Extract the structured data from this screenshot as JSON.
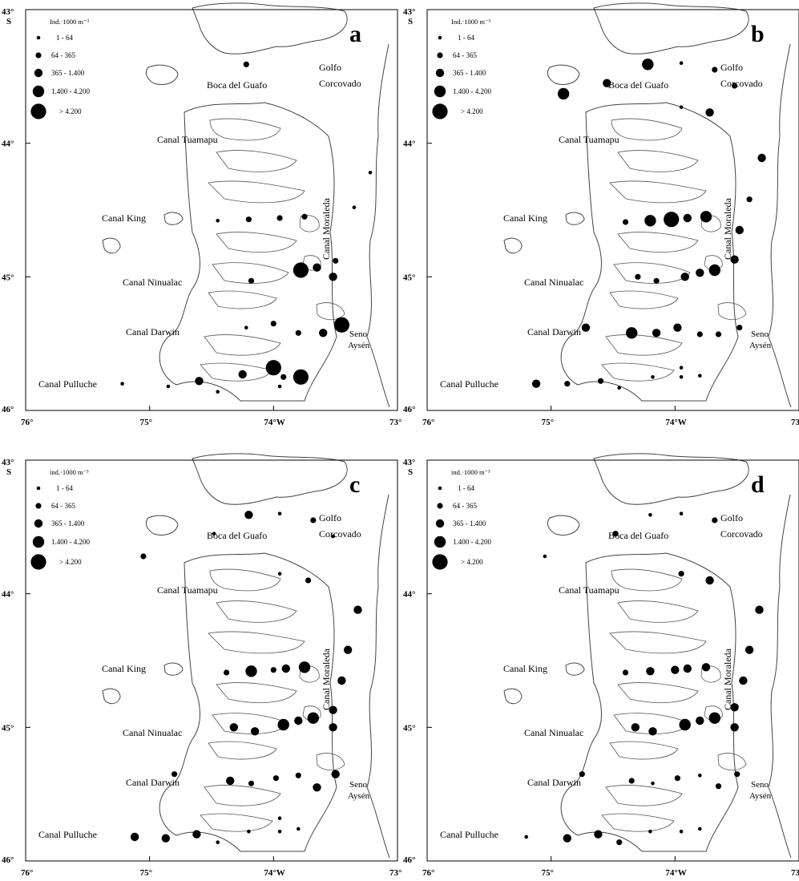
{
  "figure": {
    "axis": {
      "lat_top": "43°",
      "lat_top_suffix": "S",
      "lat_mid": "44°",
      "lat_45": "45°",
      "lat_bottom": "46°",
      "lon_76": "76°",
      "lon_75": "75°",
      "lon_74": "74°W",
      "lon_73": "73°"
    },
    "legend": {
      "title": "Ind.·1000 m⁻³",
      "classes": [
        "1 - 64",
        "64 - 365",
        "365 - 1.400",
        "1.400 - 4.200",
        "> 4.200"
      ]
    },
    "place_labels": {
      "boca_del_guafo": "Boca del Guafo",
      "golfo": "Golfo",
      "corcovado": "Corcovado",
      "canal_tuamapu": "Canal Tuamapu",
      "canal_king": "Canal King",
      "canal_moraleda": "Canal Moraleda",
      "canal_ninualac": "Canal Ninualac",
      "canal_darwin": "Canal Darwin",
      "canal_pulluche": "Canal Pulluche",
      "seno": "Seno",
      "aysen": "Aysén"
    },
    "panels": [
      {
        "label": "a",
        "legend_title": "Ind.·1000 m⁻³",
        "stations": [
          {
            "lon": -74.22,
            "lat": -43.41,
            "cls": 2
          },
          {
            "lon": -73.35,
            "lat": -44.48,
            "cls": 1
          },
          {
            "lon": -73.22,
            "lat": -44.22,
            "cls": 1
          },
          {
            "lon": -74.45,
            "lat": -44.58,
            "cls": 1
          },
          {
            "lon": -74.2,
            "lat": -44.57,
            "cls": 2
          },
          {
            "lon": -73.95,
            "lat": -44.56,
            "cls": 2
          },
          {
            "lon": -73.75,
            "lat": -44.55,
            "cls": 2
          },
          {
            "lon": -73.78,
            "lat": -44.95,
            "cls": 5
          },
          {
            "lon": -73.65,
            "lat": -44.93,
            "cls": 3
          },
          {
            "lon": -73.5,
            "lat": -44.88,
            "cls": 2
          },
          {
            "lon": -73.52,
            "lat": -45.0,
            "cls": 3
          },
          {
            "lon": -74.18,
            "lat": -45.03,
            "cls": 2
          },
          {
            "lon": -74.22,
            "lat": -45.38,
            "cls": 1
          },
          {
            "lon": -74.0,
            "lat": -45.35,
            "cls": 2
          },
          {
            "lon": -73.8,
            "lat": -45.42,
            "cls": 2
          },
          {
            "lon": -73.6,
            "lat": -45.42,
            "cls": 3
          },
          {
            "lon": -73.45,
            "lat": -45.36,
            "cls": 5
          },
          {
            "lon": -74.0,
            "lat": -45.68,
            "cls": 5
          },
          {
            "lon": -73.78,
            "lat": -45.75,
            "cls": 5
          },
          {
            "lon": -73.92,
            "lat": -45.75,
            "cls": 2
          },
          {
            "lon": -74.25,
            "lat": -45.73,
            "cls": 3
          },
          {
            "lon": -74.6,
            "lat": -45.78,
            "cls": 3
          },
          {
            "lon": -74.85,
            "lat": -45.82,
            "cls": 1
          },
          {
            "lon": -75.22,
            "lat": -45.8,
            "cls": 1
          },
          {
            "lon": -74.45,
            "lat": -45.86,
            "cls": 1
          },
          {
            "lon": -73.95,
            "lat": -45.82,
            "cls": 1
          }
        ]
      },
      {
        "label": "b",
        "legend_title": "Ind.·1000 m⁻³",
        "stations": [
          {
            "lon": -74.22,
            "lat": -43.41,
            "cls": 4
          },
          {
            "lon": -73.95,
            "lat": -43.4,
            "cls": 1
          },
          {
            "lon": -73.68,
            "lat": -43.45,
            "cls": 2
          },
          {
            "lon": -73.52,
            "lat": -43.57,
            "cls": 2
          },
          {
            "lon": -74.55,
            "lat": -43.55,
            "cls": 3
          },
          {
            "lon": -74.9,
            "lat": -43.63,
            "cls": 4
          },
          {
            "lon": -73.95,
            "lat": -43.73,
            "cls": 1
          },
          {
            "lon": -73.72,
            "lat": -43.77,
            "cls": 3
          },
          {
            "lon": -73.3,
            "lat": -44.11,
            "cls": 3
          },
          {
            "lon": -73.4,
            "lat": -44.42,
            "cls": 2
          },
          {
            "lon": -74.4,
            "lat": -44.59,
            "cls": 2
          },
          {
            "lon": -74.2,
            "lat": -44.58,
            "cls": 4
          },
          {
            "lon": -74.03,
            "lat": -44.57,
            "cls": 5
          },
          {
            "lon": -73.9,
            "lat": -44.56,
            "cls": 3
          },
          {
            "lon": -73.75,
            "lat": -44.55,
            "cls": 4
          },
          {
            "lon": -73.48,
            "lat": -44.65,
            "cls": 3
          },
          {
            "lon": -73.52,
            "lat": -44.87,
            "cls": 3
          },
          {
            "lon": -74.3,
            "lat": -45.0,
            "cls": 2
          },
          {
            "lon": -74.15,
            "lat": -45.03,
            "cls": 2
          },
          {
            "lon": -73.92,
            "lat": -45.0,
            "cls": 3
          },
          {
            "lon": -73.8,
            "lat": -44.97,
            "cls": 3
          },
          {
            "lon": -73.68,
            "lat": -44.95,
            "cls": 4
          },
          {
            "lon": -74.72,
            "lat": -45.38,
            "cls": 3
          },
          {
            "lon": -74.35,
            "lat": -45.42,
            "cls": 4
          },
          {
            "lon": -74.15,
            "lat": -45.42,
            "cls": 3
          },
          {
            "lon": -73.98,
            "lat": -45.38,
            "cls": 3
          },
          {
            "lon": -73.8,
            "lat": -45.43,
            "cls": 2
          },
          {
            "lon": -73.65,
            "lat": -45.43,
            "cls": 2
          },
          {
            "lon": -73.48,
            "lat": -45.38,
            "cls": 2
          },
          {
            "lon": -75.12,
            "lat": -45.8,
            "cls": 3
          },
          {
            "lon": -74.87,
            "lat": -45.8,
            "cls": 2
          },
          {
            "lon": -74.6,
            "lat": -45.78,
            "cls": 2
          },
          {
            "lon": -74.45,
            "lat": -45.83,
            "cls": 1
          },
          {
            "lon": -74.18,
            "lat": -45.75,
            "cls": 1
          },
          {
            "lon": -73.95,
            "lat": -45.75,
            "cls": 1
          },
          {
            "lon": -73.8,
            "lat": -45.74,
            "cls": 1
          },
          {
            "lon": -73.95,
            "lat": -45.68,
            "cls": 1
          }
        ]
      },
      {
        "label": "c",
        "legend_title": "ind.·1000 m⁻³",
        "stations": [
          {
            "lon": -74.2,
            "lat": -43.41,
            "cls": 3
          },
          {
            "lon": -73.95,
            "lat": -43.4,
            "cls": 1
          },
          {
            "lon": -73.68,
            "lat": -43.45,
            "cls": 2
          },
          {
            "lon": -73.52,
            "lat": -43.57,
            "cls": 1
          },
          {
            "lon": -74.48,
            "lat": -43.55,
            "cls": 1
          },
          {
            "lon": -75.05,
            "lat": -43.72,
            "cls": 2
          },
          {
            "lon": -73.95,
            "lat": -43.85,
            "cls": 1
          },
          {
            "lon": -73.72,
            "lat": -43.9,
            "cls": 2
          },
          {
            "lon": -73.32,
            "lat": -44.12,
            "cls": 3
          },
          {
            "lon": -73.4,
            "lat": -44.42,
            "cls": 3
          },
          {
            "lon": -74.38,
            "lat": -44.59,
            "cls": 2
          },
          {
            "lon": -74.18,
            "lat": -44.58,
            "cls": 4
          },
          {
            "lon": -74.0,
            "lat": -44.57,
            "cls": 2
          },
          {
            "lon": -73.9,
            "lat": -44.56,
            "cls": 3
          },
          {
            "lon": -73.75,
            "lat": -44.55,
            "cls": 4
          },
          {
            "lon": -73.45,
            "lat": -44.65,
            "cls": 3
          },
          {
            "lon": -73.52,
            "lat": -44.87,
            "cls": 3
          },
          {
            "lon": -74.32,
            "lat": -45.0,
            "cls": 3
          },
          {
            "lon": -74.15,
            "lat": -45.03,
            "cls": 3
          },
          {
            "lon": -73.92,
            "lat": -44.98,
            "cls": 4
          },
          {
            "lon": -73.8,
            "lat": -44.95,
            "cls": 3
          },
          {
            "lon": -73.68,
            "lat": -44.93,
            "cls": 4
          },
          {
            "lon": -73.52,
            "lat": -45.0,
            "cls": 3
          },
          {
            "lon": -74.8,
            "lat": -45.35,
            "cls": 2
          },
          {
            "lon": -74.35,
            "lat": -45.4,
            "cls": 3
          },
          {
            "lon": -74.18,
            "lat": -45.42,
            "cls": 2
          },
          {
            "lon": -73.98,
            "lat": -45.38,
            "cls": 2
          },
          {
            "lon": -73.8,
            "lat": -45.36,
            "cls": 2
          },
          {
            "lon": -73.65,
            "lat": -45.45,
            "cls": 3
          },
          {
            "lon": -73.5,
            "lat": -45.35,
            "cls": 3
          },
          {
            "lon": -75.12,
            "lat": -45.82,
            "cls": 3
          },
          {
            "lon": -74.87,
            "lat": -45.83,
            "cls": 3
          },
          {
            "lon": -74.62,
            "lat": -45.8,
            "cls": 3
          },
          {
            "lon": -74.45,
            "lat": -45.86,
            "cls": 1
          },
          {
            "lon": -74.2,
            "lat": -45.78,
            "cls": 1
          },
          {
            "lon": -73.95,
            "lat": -45.78,
            "cls": 1
          },
          {
            "lon": -73.8,
            "lat": -45.76,
            "cls": 1
          },
          {
            "lon": -73.95,
            "lat": -45.68,
            "cls": 1
          }
        ]
      },
      {
        "label": "d",
        "legend_title": "ind.·1000 m⁻³",
        "stations": [
          {
            "lon": -74.2,
            "lat": -43.41,
            "cls": 1
          },
          {
            "lon": -73.95,
            "lat": -43.4,
            "cls": 1
          },
          {
            "lon": -73.68,
            "lat": -43.45,
            "cls": 2
          },
          {
            "lon": -74.48,
            "lat": -43.55,
            "cls": 2
          },
          {
            "lon": -75.05,
            "lat": -43.72,
            "cls": 1
          },
          {
            "lon": -73.95,
            "lat": -43.85,
            "cls": 2
          },
          {
            "lon": -73.72,
            "lat": -43.9,
            "cls": 3
          },
          {
            "lon": -73.32,
            "lat": -44.12,
            "cls": 3
          },
          {
            "lon": -73.4,
            "lat": -44.42,
            "cls": 3
          },
          {
            "lon": -74.4,
            "lat": -44.59,
            "cls": 2
          },
          {
            "lon": -74.2,
            "lat": -44.58,
            "cls": 3
          },
          {
            "lon": -74.0,
            "lat": -44.57,
            "cls": 3
          },
          {
            "lon": -73.9,
            "lat": -44.56,
            "cls": 3
          },
          {
            "lon": -73.75,
            "lat": -44.55,
            "cls": 3
          },
          {
            "lon": -73.45,
            "lat": -44.65,
            "cls": 3
          },
          {
            "lon": -73.52,
            "lat": -44.85,
            "cls": 3
          },
          {
            "lon": -74.32,
            "lat": -45.0,
            "cls": 3
          },
          {
            "lon": -74.18,
            "lat": -45.03,
            "cls": 3
          },
          {
            "lon": -73.92,
            "lat": -44.98,
            "cls": 4
          },
          {
            "lon": -73.8,
            "lat": -44.95,
            "cls": 3
          },
          {
            "lon": -73.68,
            "lat": -44.93,
            "cls": 4
          },
          {
            "lon": -73.52,
            "lat": -45.0,
            "cls": 3
          },
          {
            "lon": -74.75,
            "lat": -45.35,
            "cls": 2
          },
          {
            "lon": -74.35,
            "lat": -45.4,
            "cls": 2
          },
          {
            "lon": -74.18,
            "lat": -45.42,
            "cls": 1
          },
          {
            "lon": -73.98,
            "lat": -45.38,
            "cls": 2
          },
          {
            "lon": -73.8,
            "lat": -45.36,
            "cls": 1
          },
          {
            "lon": -73.65,
            "lat": -45.44,
            "cls": 2
          },
          {
            "lon": -73.5,
            "lat": -45.35,
            "cls": 2
          },
          {
            "lon": -75.2,
            "lat": -45.82,
            "cls": 1
          },
          {
            "lon": -74.87,
            "lat": -45.83,
            "cls": 3
          },
          {
            "lon": -74.62,
            "lat": -45.8,
            "cls": 3
          },
          {
            "lon": -74.45,
            "lat": -45.86,
            "cls": 2
          },
          {
            "lon": -74.2,
            "lat": -45.78,
            "cls": 1
          },
          {
            "lon": -73.95,
            "lat": -45.78,
            "cls": 1
          },
          {
            "lon": -73.8,
            "lat": -45.76,
            "cls": 1
          }
        ]
      }
    ]
  }
}
